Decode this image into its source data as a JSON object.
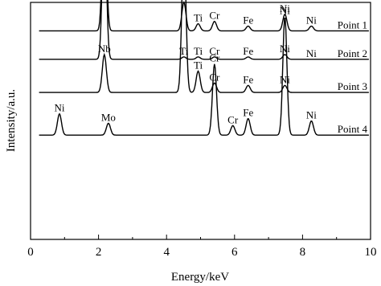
{
  "chart_data": {
    "type": "line",
    "xlabel": "Energy/keV",
    "ylabel": "Intensity/a.u.",
    "xlim": [
      0,
      10
    ],
    "x_ticks": [
      "0",
      "2",
      "4",
      "6",
      "8",
      "10"
    ],
    "grid": false,
    "legend": "none",
    "line_color": "#000000",
    "series": [
      {
        "name": "Point 1",
        "baseline": 0.88,
        "peaks": [
          {
            "label": "Nb",
            "x": 2.17,
            "height": 0.56
          },
          {
            "label": "Ti",
            "x": 4.51,
            "height": 0.12
          },
          {
            "label": "Ti",
            "x": 4.93,
            "height": 0.03
          },
          {
            "label": "Cr",
            "x": 5.41,
            "height": 0.04
          },
          {
            "label": "Fe",
            "x": 6.4,
            "height": 0.02
          },
          {
            "label": "Ni",
            "x": 7.48,
            "height": 0.07
          },
          {
            "label": "Ni",
            "x": 8.26,
            "height": 0.02
          }
        ]
      },
      {
        "name": "Point 2",
        "baseline": 0.76,
        "peaks": [
          {
            "label": "Nb",
            "x": 2.17,
            "height": 0.62
          },
          {
            "label": "Ti",
            "x": 4.51,
            "height": 0.01
          },
          {
            "label": "Ti",
            "x": 4.93,
            "height": 0.01
          },
          {
            "label": "Cr",
            "x": 5.41,
            "height": 0.01
          },
          {
            "label": "Fe",
            "x": 6.4,
            "height": 0.01
          },
          {
            "label": "Ni",
            "x": 7.48,
            "height": 0.02
          },
          {
            "label": "Ni",
            "x": 8.26,
            "height": 0.0
          }
        ]
      },
      {
        "name": "Point 3",
        "baseline": 0.62,
        "peaks": [
          {
            "label": "Nb",
            "x": 2.17,
            "height": 0.16
          },
          {
            "label": "Ti",
            "x": 4.51,
            "height": 0.63
          },
          {
            "label": "Ti",
            "x": 4.93,
            "height": 0.09
          },
          {
            "label": "Cr",
            "x": 5.41,
            "height": 0.04
          },
          {
            "label": "Fe",
            "x": 6.4,
            "height": 0.03
          },
          {
            "label": "Ni",
            "x": 7.48,
            "height": 0.03
          }
        ]
      },
      {
        "name": "Point 4",
        "baseline": 0.44,
        "peaks": [
          {
            "label": "Ni",
            "x": 0.85,
            "height": 0.09
          },
          {
            "label": "Mo",
            "x": 2.29,
            "height": 0.05
          },
          {
            "label": "Cr",
            "x": 5.41,
            "height": 0.3
          },
          {
            "label": "Cr",
            "x": 5.95,
            "height": 0.04
          },
          {
            "label": "Fe",
            "x": 6.4,
            "height": 0.07
          },
          {
            "label": "Ni",
            "x": 7.48,
            "height": 0.5
          },
          {
            "label": "Ni",
            "x": 8.26,
            "height": 0.06
          }
        ]
      }
    ]
  }
}
